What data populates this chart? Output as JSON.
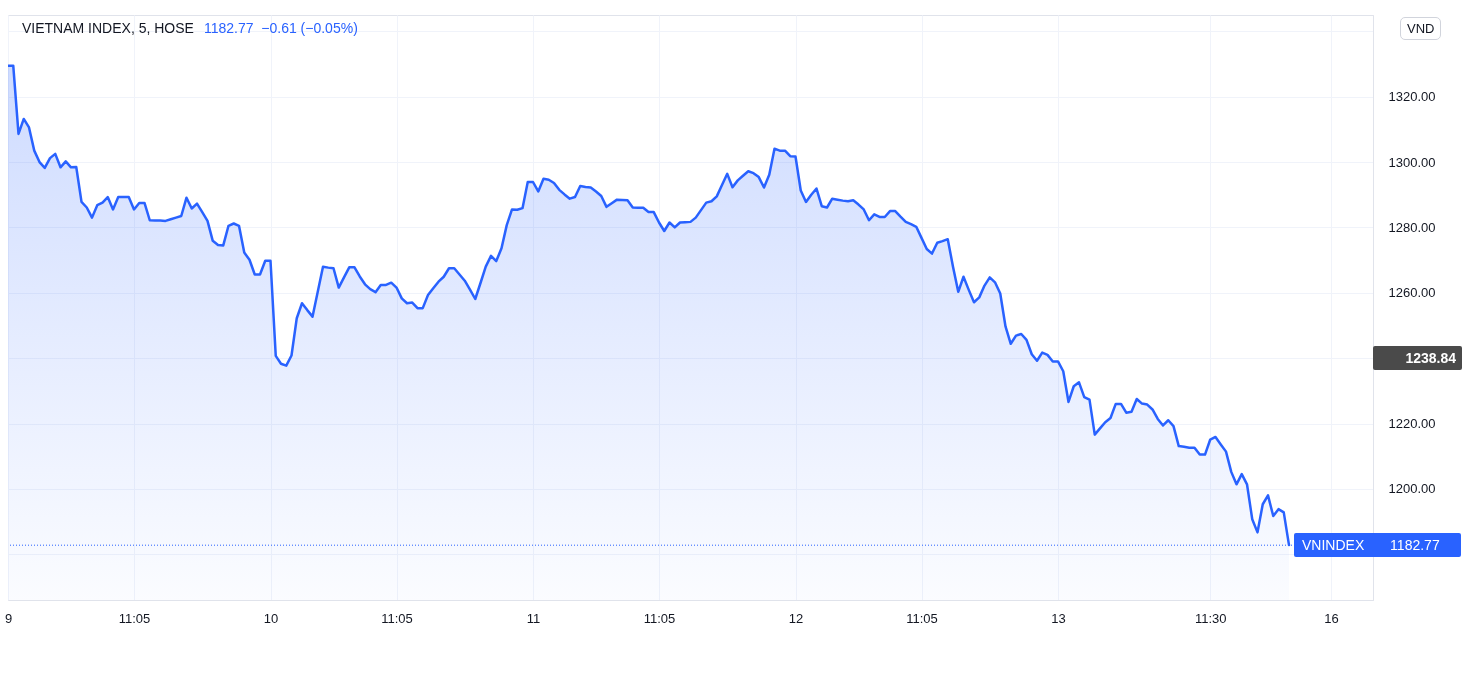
{
  "chart_data": {
    "type": "area",
    "title": "VIETNAM INDEX, 5, HOSE",
    "subtitle": "1182.77  −0.61 (−0.05%)",
    "categories": [
      "9",
      null,
      null,
      null,
      null,
      null,
      null,
      null,
      null,
      null,
      null,
      null,
      null,
      null,
      null,
      null,
      null,
      null,
      null,
      null,
      null,
      null,
      null,
      null,
      "11:05",
      null,
      null,
      null,
      null,
      null,
      null,
      null,
      null,
      null,
      null,
      null,
      null,
      null,
      null,
      null,
      null,
      null,
      null,
      null,
      null,
      null,
      null,
      null,
      null,
      null,
      "10",
      null,
      null,
      null,
      null,
      null,
      null,
      null,
      null,
      null,
      null,
      null,
      null,
      null,
      null,
      null,
      null,
      null,
      null,
      null,
      null,
      null,
      null,
      null,
      "11:05",
      null,
      null,
      null,
      null,
      null,
      null,
      null,
      null,
      null,
      null,
      null,
      null,
      null,
      null,
      null,
      null,
      null,
      null,
      null,
      null,
      null,
      null,
      null,
      null,
      null,
      "11",
      null,
      null,
      null,
      null,
      null,
      null,
      null,
      null,
      null,
      null,
      null,
      null,
      null,
      null,
      null,
      null,
      null,
      null,
      null,
      null,
      null,
      null,
      null,
      "11:05",
      null,
      null,
      null,
      null,
      null,
      null,
      null,
      null,
      null,
      null,
      null,
      null,
      null,
      null,
      null,
      null,
      null,
      null,
      null,
      null,
      null,
      null,
      null,
      null,
      null,
      "12",
      null,
      null,
      null,
      null,
      null,
      null,
      null,
      null,
      null,
      null,
      null,
      null,
      null,
      null,
      null,
      null,
      null,
      null,
      null,
      null,
      null,
      null,
      null,
      "11:05",
      null,
      null,
      null,
      null,
      null,
      null,
      null,
      null,
      null,
      null,
      null,
      null,
      null,
      null,
      null,
      null,
      null,
      null,
      null,
      null,
      null,
      null,
      null,
      null,
      null,
      "13",
      null,
      null,
      null,
      null,
      null,
      null,
      null,
      null,
      null,
      null,
      null,
      null,
      null,
      null,
      null,
      null,
      null,
      null,
      null,
      null,
      null,
      null,
      null,
      null,
      null,
      null,
      null,
      null,
      "11:30",
      null,
      null,
      null,
      null,
      null,
      null,
      null,
      null,
      null,
      null,
      null,
      null,
      null,
      null,
      null,
      null,
      null,
      null,
      null,
      null,
      null,
      null,
      "16",
      null,
      null,
      null,
      null,
      null,
      null,
      null,
      null
    ],
    "ylim": [
      1166,
      1345
    ],
    "yticks": [
      {
        "value": 1180,
        "label": null
      },
      {
        "value": 1200,
        "label": "1200.00"
      },
      {
        "value": 1220,
        "label": "1220.00"
      },
      {
        "value": 1240,
        "label": null
      },
      {
        "value": 1260,
        "label": "1260.00"
      },
      {
        "value": 1280,
        "label": "1280.00"
      },
      {
        "value": 1300,
        "label": "1300.00"
      },
      {
        "value": 1320,
        "label": "1320.00"
      },
      {
        "value": 1340,
        "label": null
      }
    ],
    "grid": true,
    "series": [
      {
        "color": "#2962ff",
        "values": [
          1329.5,
          1329.5,
          1308.6,
          1313.2,
          1310.6,
          1303.5,
          1300,
          1298.2,
          1301.2,
          1302.5,
          1298.4,
          1300.2,
          1298.4,
          1298.5,
          1287.8,
          1286.1,
          1283,
          1286.8,
          1287.6,
          1289.3,
          1285.5,
          1289.3,
          1289.3,
          1289.3,
          1285.5,
          1287.5,
          1287.5,
          1282.2,
          1282.1,
          1282.1,
          1282,
          1282.5,
          1283,
          1283.5,
          1289.1,
          1285.8,
          1287.3,
          1284.7,
          1282,
          1275.9,
          1274.6,
          1274.5,
          1280.5,
          1281.2,
          1280.5,
          1272.3,
          1270.1,
          1265.6,
          1265.6,
          1269.8,
          1269.8,
          1240.7,
          1238.3,
          1237.7,
          1240.8,
          1252.2,
          1256.8,
          1254.7,
          1252.7,
          1260.3,
          1268,
          1267.7,
          1267.5,
          1261.6,
          1264.7,
          1267.8,
          1267.8,
          1265,
          1262.6,
          1261.1,
          1260.2,
          1262.4,
          1262.4,
          1263.1,
          1261.6,
          1258.3,
          1256.8,
          1257,
          1255.3,
          1255.3,
          1259.3,
          1261.4,
          1263.4,
          1264.9,
          1267.5,
          1267.5,
          1265.6,
          1263.7,
          1261,
          1258.1,
          1263,
          1268,
          1271.3,
          1269.7,
          1273.6,
          1280.7,
          1285.5,
          1285.4,
          1285.9,
          1293.9,
          1293.9,
          1291,
          1294.9,
          1294.6,
          1293.6,
          1291.5,
          1290.1,
          1288.8,
          1289.3,
          1292.7,
          1292.4,
          1292.2,
          1291,
          1289.6,
          1286.3,
          1287.4,
          1288.5,
          1288.4,
          1288.3,
          1286.1,
          1286,
          1286,
          1284.7,
          1284.7,
          1281.5,
          1278.9,
          1281.5,
          1280,
          1281.5,
          1281.6,
          1281.7,
          1283,
          1285.3,
          1287.6,
          1288,
          1289.5,
          1293,
          1296.4,
          1292.3,
          1294.4,
          1295.8,
          1297.2,
          1296.6,
          1295.4,
          1292.2,
          1296.1,
          1304.1,
          1303.5,
          1303.5,
          1301.8,
          1301.7,
          1291.3,
          1287.8,
          1290,
          1291.9,
          1286.5,
          1286.1,
          1288.8,
          1288.5,
          1288.2,
          1288,
          1288.3,
          1287,
          1285.5,
          1282.2,
          1284,
          1283.2,
          1283.2,
          1285,
          1285,
          1283.3,
          1281.7,
          1281,
          1280.2,
          1276.8,
          1273.4,
          1272,
          1275.3,
          1275.8,
          1276.4,
          1268,
          1260.3,
          1264.9,
          1260.9,
          1257.1,
          1258.6,
          1262.2,
          1264.7,
          1263.2,
          1259.8,
          1249.7,
          1244.4,
          1246.9,
          1247.4,
          1245.6,
          1241.2,
          1239.2,
          1241.7,
          1241,
          1239,
          1239,
          1236,
          1226.6,
          1231.4,
          1232.6,
          1228.1,
          1227.3,
          1216.6,
          1218.5,
          1220.4,
          1221.7,
          1226,
          1226,
          1223.3,
          1223.6,
          1227.5,
          1226.1,
          1225.8,
          1224.3,
          1221.4,
          1219.4,
          1221,
          1219.2,
          1213.1,
          1212.9,
          1212.6,
          1212.6,
          1210.5,
          1210.5,
          1215.1,
          1215.9,
          1213.6,
          1211.4,
          1205.2,
          1201.4,
          1204.5,
          1201.4,
          1190.7,
          1186.7,
          1195.3,
          1198,
          1191.7,
          1193.8,
          1192.8,
          1182.8,
          null,
          null,
          null,
          null,
          null,
          null,
          null,
          null,
          null,
          null,
          null,
          null,
          null,
          null,
          null,
          null
        ]
      }
    ],
    "ref_lines": [
      {
        "axis": "y",
        "value": 1182.77,
        "label": "VNINDEX 1182.77",
        "color": "#2962ff",
        "line_style": "dotted"
      }
    ],
    "annotations": [
      "VND",
      "1238.84"
    ]
  }
}
